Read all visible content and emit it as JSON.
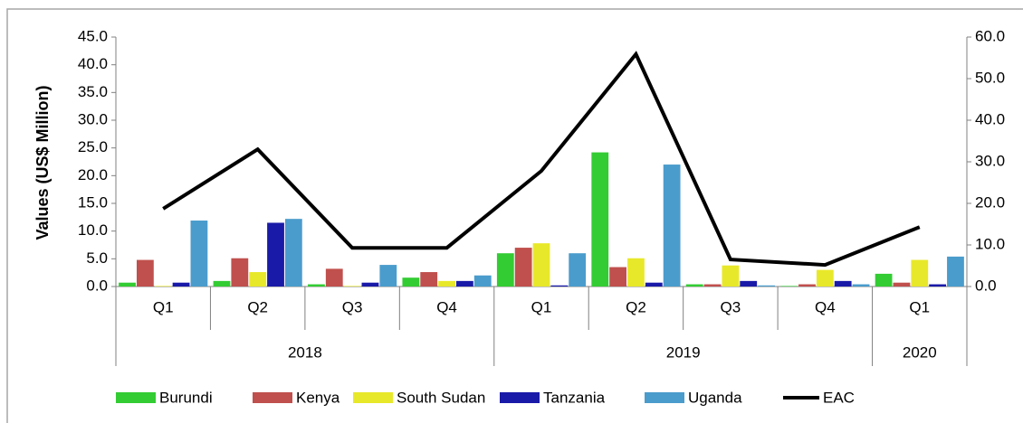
{
  "chart_data": {
    "type": "bar_line",
    "y_label": "Values (US$ Million)",
    "categories": [
      "Q1",
      "Q2",
      "Q3",
      "Q4",
      "Q1",
      "Q2",
      "Q3",
      "Q4",
      "Q1"
    ],
    "x_groups": [
      {
        "label": "2018",
        "count": 4
      },
      {
        "label": "2019",
        "count": 4
      },
      {
        "label": "2020",
        "count": 1
      }
    ],
    "series": [
      {
        "name": "Burundi",
        "color": "#33cc33",
        "values": [
          0.7,
          1.0,
          0.4,
          1.6,
          6.0,
          24.2,
          0.4,
          0.1,
          2.3
        ]
      },
      {
        "name": "Kenya",
        "color": "#c0504d",
        "values": [
          4.8,
          5.1,
          3.2,
          2.6,
          7.0,
          3.5,
          0.4,
          0.4,
          0.7
        ]
      },
      {
        "name": "South Sudan",
        "color": "#e8e82a",
        "values": [
          0.1,
          2.6,
          0.1,
          1.0,
          7.8,
          5.1,
          3.8,
          3.0,
          4.8
        ]
      },
      {
        "name": "Tanzania",
        "color": "#1a1aa8",
        "values": [
          0.7,
          11.5,
          0.7,
          1.0,
          0.2,
          0.7,
          1.0,
          1.0,
          0.4
        ]
      },
      {
        "name": "Uganda",
        "color": "#4a9ccc",
        "values": [
          11.9,
          12.2,
          3.9,
          2.0,
          6.0,
          22.0,
          0.2,
          0.4,
          5.4
        ]
      },
      {
        "name": "EAC",
        "color": "#000000",
        "type": "line",
        "axis": "y2",
        "values": [
          18.7,
          33.0,
          9.3,
          9.3,
          27.8,
          55.9,
          6.5,
          5.2,
          14.3
        ]
      }
    ],
    "ylim": [
      0,
      45
    ],
    "yticks": [
      {
        "value": 0,
        "label": "0.0"
      },
      {
        "value": 5,
        "label": "5.0"
      },
      {
        "value": 10,
        "label": "10.0"
      },
      {
        "value": 15,
        "label": "15.0"
      },
      {
        "value": 20,
        "label": "20.0"
      },
      {
        "value": 25,
        "label": "25.0"
      },
      {
        "value": 30,
        "label": "30.0"
      },
      {
        "value": 35,
        "label": "35.0"
      },
      {
        "value": 40,
        "label": "40.0"
      },
      {
        "value": 45,
        "label": "45.0"
      }
    ],
    "y2lim": [
      0,
      60
    ],
    "y2ticks": [
      {
        "value": 0,
        "label": "0.0"
      },
      {
        "value": 10,
        "label": "10.0"
      },
      {
        "value": 20,
        "label": "20.0"
      },
      {
        "value": 30,
        "label": "30.0"
      },
      {
        "value": 40,
        "label": "40.0"
      },
      {
        "value": 50,
        "label": "50.0"
      },
      {
        "value": 60,
        "label": "60.0"
      }
    ],
    "legend": "bottom"
  }
}
